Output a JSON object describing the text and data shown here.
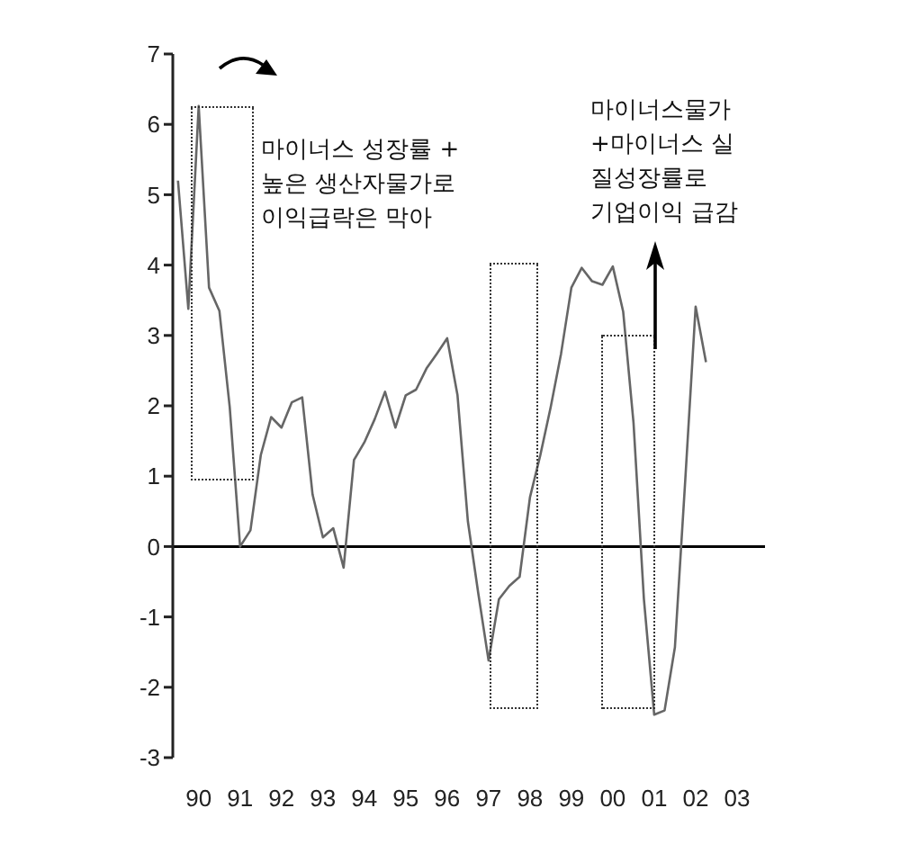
{
  "chart_data": {
    "type": "line",
    "categories": [
      null,
      null,
      "90",
      null,
      null,
      null,
      "91",
      null,
      null,
      null,
      "92",
      null,
      null,
      null,
      "93",
      null,
      null,
      null,
      "94",
      null,
      null,
      null,
      "95",
      null,
      null,
      null,
      "96",
      null,
      null,
      null,
      "97",
      null,
      null,
      null,
      "98",
      null,
      null,
      null,
      "99",
      null,
      null,
      null,
      "00",
      null,
      null,
      null,
      "01",
      null,
      null,
      null,
      "02",
      null,
      null,
      null,
      "03"
    ],
    "series": [
      {
        "color": "#666666",
        "values": [
          5.2,
          3.38,
          6.26,
          3.68,
          3.35,
          1.98,
          0,
          0.23,
          1.3,
          1.84,
          1.69,
          2.05,
          2.12,
          0.74,
          0.13,
          0.26,
          -0.3,
          1.23,
          1.48,
          1.81,
          2.2,
          1.69,
          2.15,
          2.23,
          2.53,
          2.74,
          2.96,
          2.15,
          0.36,
          -0.66,
          -1.62,
          -0.75,
          -0.56,
          -0.43,
          0.7,
          1.3,
          1.98,
          2.74,
          3.68,
          3.96,
          3.77,
          3.72,
          3.98,
          3.34,
          1.76,
          -0.74,
          -2.39,
          -2.33,
          -1.43,
          0.95,
          3.41,
          2.62,
          null,
          null,
          null
        ]
      }
    ],
    "ylim": [
      -3,
      7
    ],
    "yticks": [
      -3,
      -2,
      -1,
      0,
      1,
      2,
      3,
      4,
      5,
      6,
      7
    ],
    "ref_lines": [
      {
        "axis": "y",
        "value": 0,
        "color": "#000000"
      }
    ],
    "annotations": [
      "마이너스 성장률 +\n높은 생산자물가로\n이익급락은 막아",
      "마이너스물가\n+마이너스 실\n질성장률로\n기업이익 급감"
    ],
    "grid": false,
    "legend": false,
    "marker": "none",
    "line_style": "solid"
  }
}
